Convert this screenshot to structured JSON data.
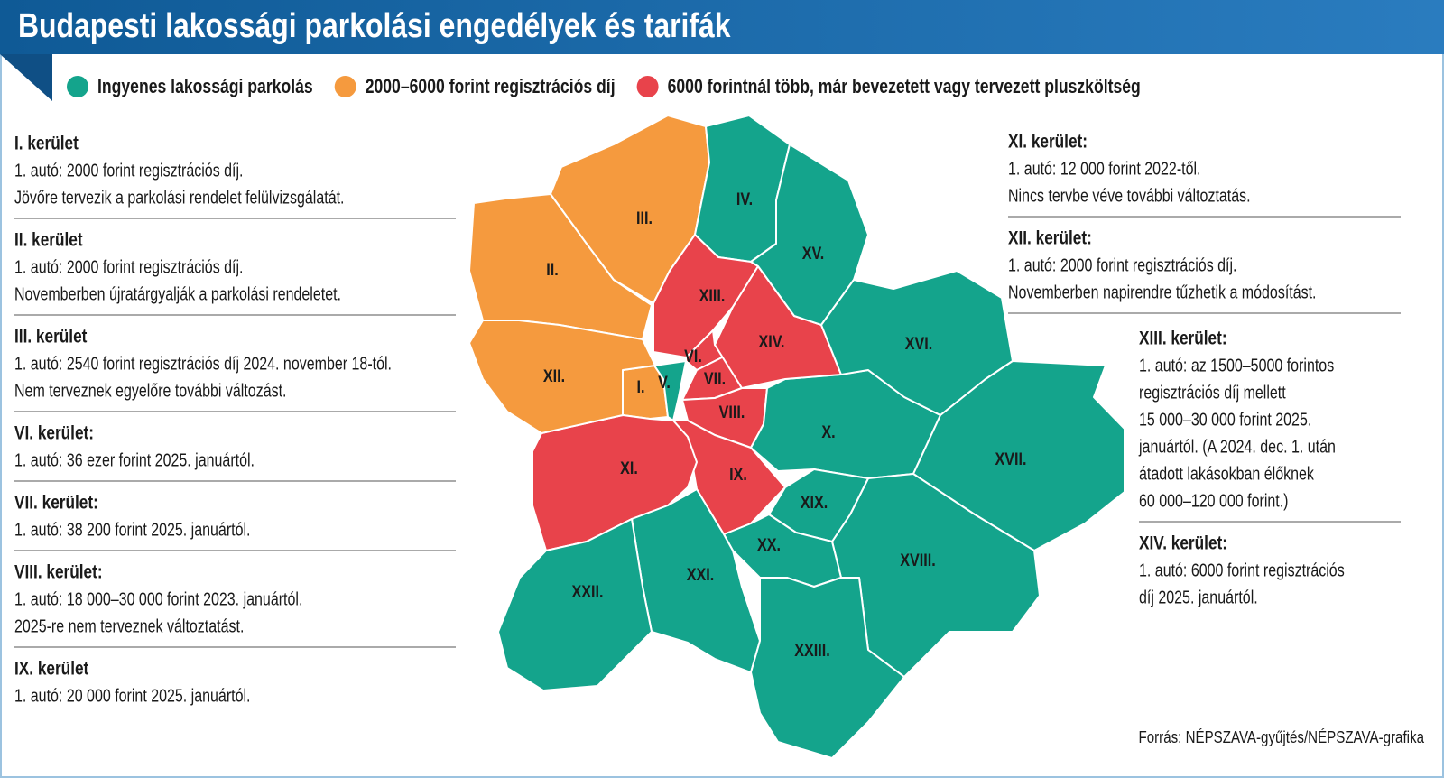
{
  "header": {
    "title": "Budapesti lakossági parkolási engedélyek és tarifák"
  },
  "legend": [
    {
      "label": "Ingyenes lakossági parkolás",
      "color": "#14a48c"
    },
    {
      "label": "2000–6000 forint regisztrációs díj",
      "color": "#f59a3e"
    },
    {
      "label": "6000 forintnál több, már bevezetett vagy tervezett pluszköltség",
      "color": "#e8434b"
    }
  ],
  "districts": [
    {
      "label": "I.",
      "color": "#f59a3e"
    },
    {
      "label": "II.",
      "color": "#f59a3e"
    },
    {
      "label": "III.",
      "color": "#f59a3e"
    },
    {
      "label": "IV.",
      "color": "#14a48c"
    },
    {
      "label": "V.",
      "color": "#14a48c"
    },
    {
      "label": "VI.",
      "color": "#e8434b"
    },
    {
      "label": "VII.",
      "color": "#e8434b"
    },
    {
      "label": "VIII.",
      "color": "#e8434b"
    },
    {
      "label": "IX.",
      "color": "#e8434b"
    },
    {
      "label": "X.",
      "color": "#14a48c"
    },
    {
      "label": "XI.",
      "color": "#e8434b"
    },
    {
      "label": "XII.",
      "color": "#f59a3e"
    },
    {
      "label": "XIII.",
      "color": "#e8434b"
    },
    {
      "label": "XIV.",
      "color": "#e8434b"
    },
    {
      "label": "XV.",
      "color": "#14a48c"
    },
    {
      "label": "XVI.",
      "color": "#14a48c"
    },
    {
      "label": "XVII.",
      "color": "#14a48c"
    },
    {
      "label": "XVIII.",
      "color": "#14a48c"
    },
    {
      "label": "XIX.",
      "color": "#14a48c"
    },
    {
      "label": "XX.",
      "color": "#14a48c"
    },
    {
      "label": "XXI.",
      "color": "#14a48c"
    },
    {
      "label": "XXII.",
      "color": "#14a48c"
    },
    {
      "label": "XXIII.",
      "color": "#14a48c"
    }
  ],
  "notes_left": [
    {
      "heading": "I. kerület",
      "lines": [
        "1. autó: 2000 forint regisztrációs díj.",
        "Jövőre tervezik a parkolási rendelet felülvizsgálatát."
      ]
    },
    {
      "heading": "II. kerület",
      "lines": [
        "1. autó: 2000 forint regisztrációs díj.",
        "Novemberben újratárgyalják a parkolási rendeletet."
      ]
    },
    {
      "heading": "III. kerület",
      "lines": [
        "1. autó: 2540 forint regisztrációs díj 2024. november 18-tól.",
        "Nem terveznek egyelőre további változást."
      ]
    },
    {
      "heading": "VI. kerület:",
      "lines": [
        "1. autó: 36 ezer forint 2025. januártól."
      ]
    },
    {
      "heading": "VII. kerület:",
      "lines": [
        "1. autó: 38 200 forint 2025. januártól."
      ]
    },
    {
      "heading": "VIII. kerület:",
      "lines": [
        "1. autó: 18 000–30 000 forint 2023. januártól.",
        "2025-re nem terveznek változtatást."
      ]
    },
    {
      "heading": "IX. kerület",
      "lines": [
        "1. autó: 20 000 forint 2025. januártól."
      ]
    }
  ],
  "notes_right": [
    {
      "heading": "XI. kerület:",
      "lines": [
        "1. autó: 12 000 forint 2022-től.",
        "Nincs tervbe véve további változtatás."
      ]
    },
    {
      "heading": "XII. kerület:",
      "lines": [
        "1. autó: 2000 forint regisztrációs díj.",
        "Novemberben napirendre tűzhetik a módosítást."
      ]
    },
    {
      "heading": "XIII. kerület:",
      "lines": [
        "1. autó: az 1500–5000 forintos",
        "regisztrációs díj mellett",
        "15 000–30 000 forint 2025.",
        "januártól. (A 2024. dec. 1. után",
        "átadott lakásokban élőknek",
        "60 000–120 000 forint.)"
      ]
    },
    {
      "heading": "XIV. kerület:",
      "lines": [
        "1. autó: 6000 forint regisztrációs",
        "díj 2025. januártól."
      ]
    }
  ],
  "source": "Forrás: NÉPSZAVA-gyűjtés/NÉPSZAVA-grafika"
}
